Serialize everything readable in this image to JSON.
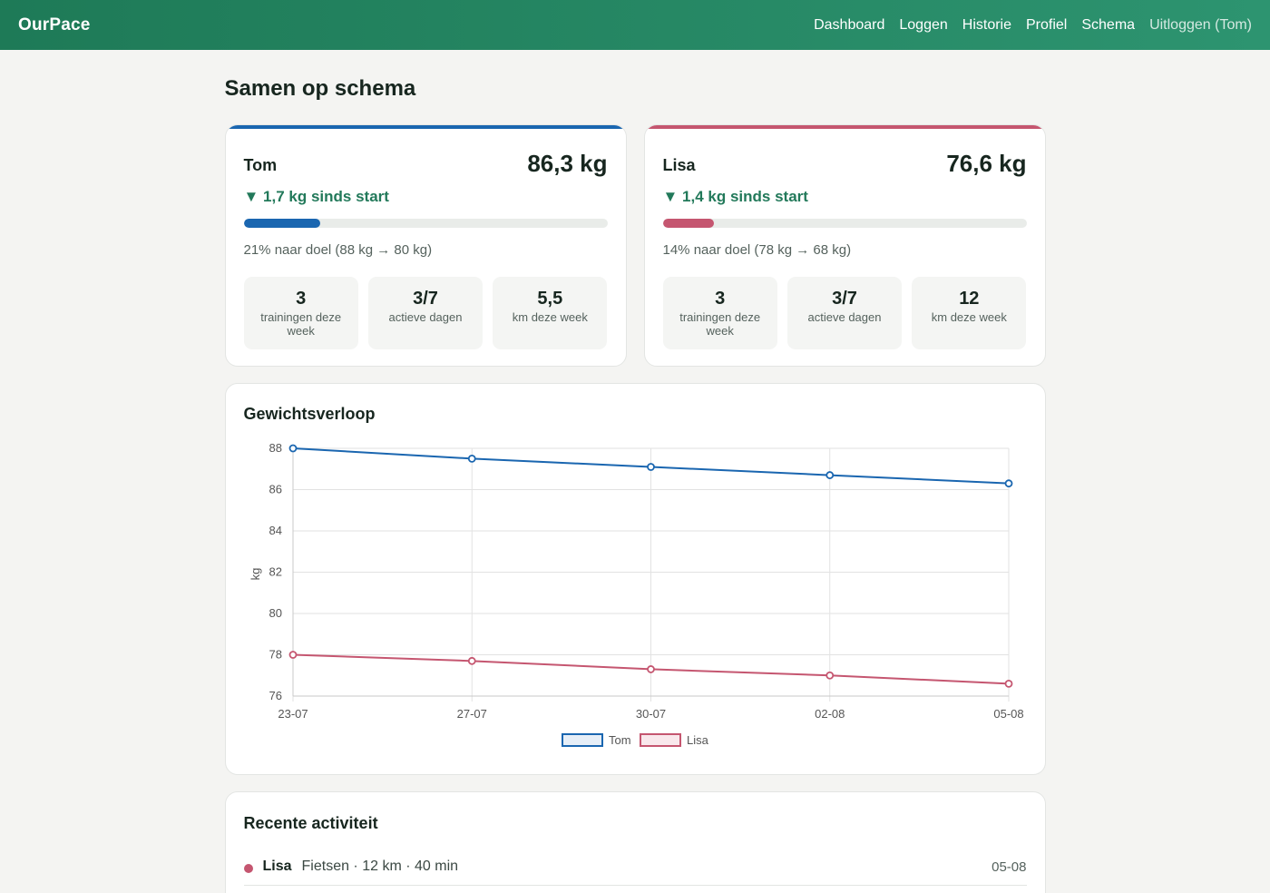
{
  "app": {
    "brand": "OurPace"
  },
  "nav": {
    "items": [
      "Dashboard",
      "Loggen",
      "Historie",
      "Profiel",
      "Schema"
    ],
    "logout": "Uitloggen (Tom)"
  },
  "page_title": "Samen op schema",
  "colors": {
    "tom": "#1a66b0",
    "lisa": "#c55670",
    "positive": "#22795a"
  },
  "people": [
    {
      "name": "Tom",
      "weight": "86,3 kg",
      "delta": "▼ 1,7 kg sinds start",
      "progress_percent": 21,
      "goal": "21% naar doel (88 kg → 80 kg)",
      "stats": [
        {
          "value": "3",
          "label": "trainingen deze week"
        },
        {
          "value": "3/7",
          "label": "actieve dagen"
        },
        {
          "value": "5,5",
          "label": "km deze week"
        }
      ]
    },
    {
      "name": "Lisa",
      "weight": "76,6 kg",
      "delta": "▼ 1,4 kg sinds start",
      "progress_percent": 14,
      "goal": "14% naar doel (78 kg → 68 kg)",
      "stats": [
        {
          "value": "3",
          "label": "trainingen deze week"
        },
        {
          "value": "3/7",
          "label": "actieve dagen"
        },
        {
          "value": "12",
          "label": "km deze week"
        }
      ]
    }
  ],
  "chart_title": "Gewichtsverloop",
  "chart_data": {
    "type": "line",
    "x": [
      "23-07",
      "27-07",
      "30-07",
      "02-08",
      "05-08"
    ],
    "series": [
      {
        "name": "Tom",
        "values": [
          88.0,
          87.5,
          87.1,
          86.7,
          86.3
        ],
        "color": "#1a66b0"
      },
      {
        "name": "Lisa",
        "values": [
          78.0,
          77.7,
          77.3,
          77.0,
          76.6
        ],
        "color": "#c55670"
      }
    ],
    "ylabel": "kg",
    "ylim": [
      76,
      88
    ],
    "yticks": [
      88,
      86,
      84,
      82,
      80,
      78,
      76
    ],
    "grid": true,
    "legend": "bottom"
  },
  "activity": {
    "title": "Recente activiteit",
    "items": [
      {
        "name": "Lisa",
        "desc": "Fietsen · 12 km · 40 min",
        "date": "05-08",
        "color": "#c55670"
      }
    ]
  }
}
